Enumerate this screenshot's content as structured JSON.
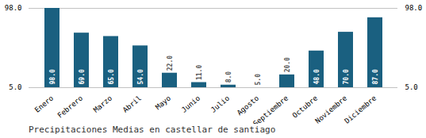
{
  "chart_data": {
    "type": "bar",
    "title": "Precipitaciones Medias en castellar de santiago",
    "categories": [
      "Enero",
      "Febrero",
      "Marzo",
      "Abril",
      "Mayo",
      "Junio",
      "Julio",
      "Agosto",
      "Septiembre",
      "Octubre",
      "Noviembre",
      "Diciembre"
    ],
    "values": [
      98.0,
      69.0,
      65.0,
      54.0,
      22.0,
      11.0,
      8.0,
      5.0,
      20.0,
      48.0,
      70.0,
      87.0
    ],
    "value_labels": [
      "98.0",
      "69.0",
      "65.0",
      "54.0",
      "22.0",
      "11.0",
      "8.0",
      "5.0",
      "20.0",
      "48.0",
      "70.0",
      "87.0"
    ],
    "color": "#1a6080",
    "ylim": [
      5.0,
      98.0
    ],
    "yticks": [
      {
        "value": 5.0,
        "label": "5.0"
      },
      {
        "value": 98.0,
        "label": "98.0"
      }
    ],
    "grid": true,
    "data_labels": true
  }
}
